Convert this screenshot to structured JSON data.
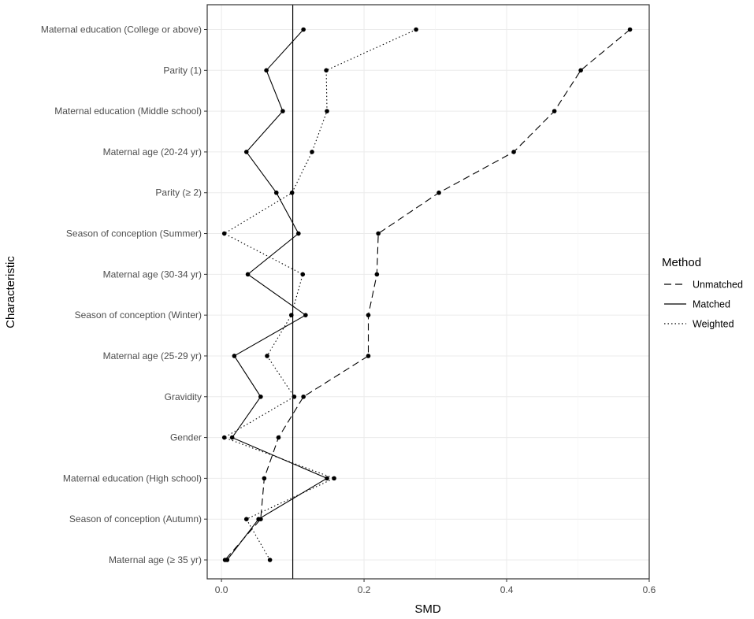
{
  "chart_data": {
    "type": "line",
    "xlabel": "SMD",
    "ylabel": "Characteristic",
    "xlim": [
      -0.02,
      0.6
    ],
    "xticks": [
      0.0,
      0.2,
      0.4,
      0.6
    ],
    "xtick_labels": [
      "0.0",
      "0.2",
      "0.4",
      "0.6"
    ],
    "reference_line_x": 0.1,
    "grid": true,
    "legend_position": "right",
    "legend_title": "Method",
    "categories": [
      "Maternal education (College or above)",
      "Parity (1)",
      "Maternal education (Middle school)",
      "Maternal age (20-24 yr)",
      "Parity (≥ 2)",
      "Season of conception (Summer)",
      "Maternal age (30-34 yr)",
      "Season of conception (Winter)",
      "Maternal age (25-29 yr)",
      "Gravidity",
      "Gender",
      "Maternal education (High school)",
      "Season of conception (Autumn)",
      "Maternal age (≥ 35 yr)"
    ],
    "series": [
      {
        "name": "Unmatched",
        "dash": "dashed",
        "values": [
          0.573,
          0.504,
          0.467,
          0.41,
          0.305,
          0.22,
          0.218,
          0.206,
          0.206,
          0.115,
          0.08,
          0.06,
          0.055,
          0.005
        ]
      },
      {
        "name": "Matched",
        "dash": "solid",
        "values": [
          0.115,
          0.063,
          0.086,
          0.035,
          0.077,
          0.108,
          0.037,
          0.118,
          0.018,
          0.055,
          0.015,
          0.148,
          0.052,
          0.008
        ]
      },
      {
        "name": "Weighted",
        "dash": "dotted",
        "values": [
          0.273,
          0.147,
          0.148,
          0.127,
          0.099,
          0.004,
          0.114,
          0.098,
          0.064,
          0.102,
          0.004,
          0.158,
          0.035,
          0.068
        ]
      }
    ]
  }
}
